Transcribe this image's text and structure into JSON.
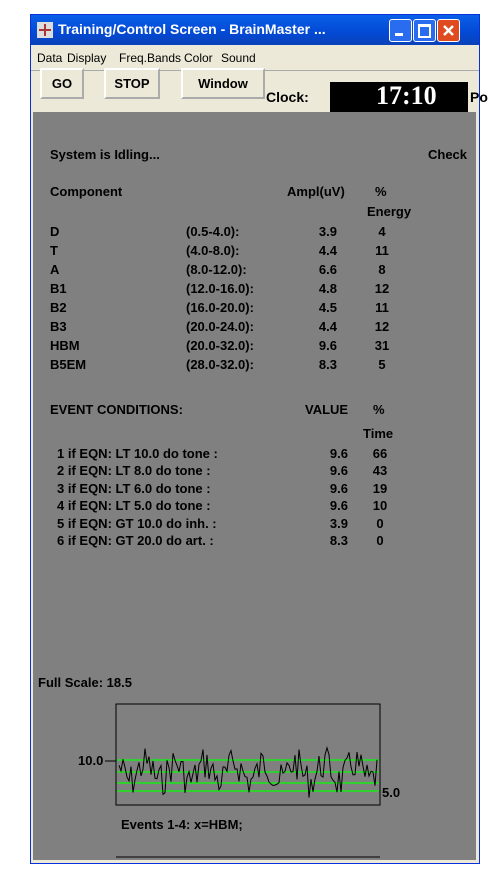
{
  "window": {
    "title": "Training/Control Screen - BrainMaster ..."
  },
  "menu": [
    "Data",
    "Display",
    "Freq.Bands",
    "Color",
    "Sound"
  ],
  "toolbar": {
    "buttons": [
      "GO",
      "STOP",
      "Window"
    ],
    "clock_label": "Clock:",
    "clock": "17:10",
    "cut_label": "Po"
  },
  "status": {
    "text": "System is Idling...",
    "right": "Check"
  },
  "components": {
    "header": [
      "Component",
      "Ampl(uV)",
      "%",
      "Energy"
    ],
    "rows": [
      [
        "D",
        "(0.5-4.0):",
        "3.9",
        "4"
      ],
      [
        "T",
        "(4.0-8.0):",
        "4.4",
        "11"
      ],
      [
        "A",
        "(8.0-12.0):",
        "6.6",
        "8"
      ],
      [
        "B1",
        "(12.0-16.0):",
        "4.8",
        "12"
      ],
      [
        "B2",
        "(16.0-20.0):",
        "4.5",
        "11"
      ],
      [
        "B3",
        "(20.0-24.0):",
        "4.4",
        "12"
      ],
      [
        "HBM",
        "(20.0-32.0):",
        "9.6",
        "31"
      ],
      [
        "B5EM",
        "(28.0-32.0):",
        "8.3",
        "5"
      ]
    ]
  },
  "events": {
    "header": [
      "EVENT CONDITIONS:",
      "VALUE",
      "%",
      "Time"
    ],
    "rows": [
      [
        "1 if EQN: LT 10.0 do tone :",
        "9.6",
        "66"
      ],
      [
        "2 if EQN: LT 8.0 do tone :",
        "9.6",
        "43"
      ],
      [
        "3 if EQN: LT 6.0 do tone :",
        "9.6",
        "19"
      ],
      [
        "4 if EQN: LT 5.0 do tone :",
        "9.6",
        "10"
      ],
      [
        "5 if EQN: GT 10.0 do inh. :",
        "3.9",
        "0"
      ],
      [
        "6 if EQN: GT 20.0 do art. :",
        "8.3",
        "0"
      ]
    ]
  },
  "graph": {
    "full_scale": "Full Scale: 18.5",
    "left_label": "10.0",
    "right_label": "5.0",
    "caption": "Events 1-4: x=HBM;"
  }
}
